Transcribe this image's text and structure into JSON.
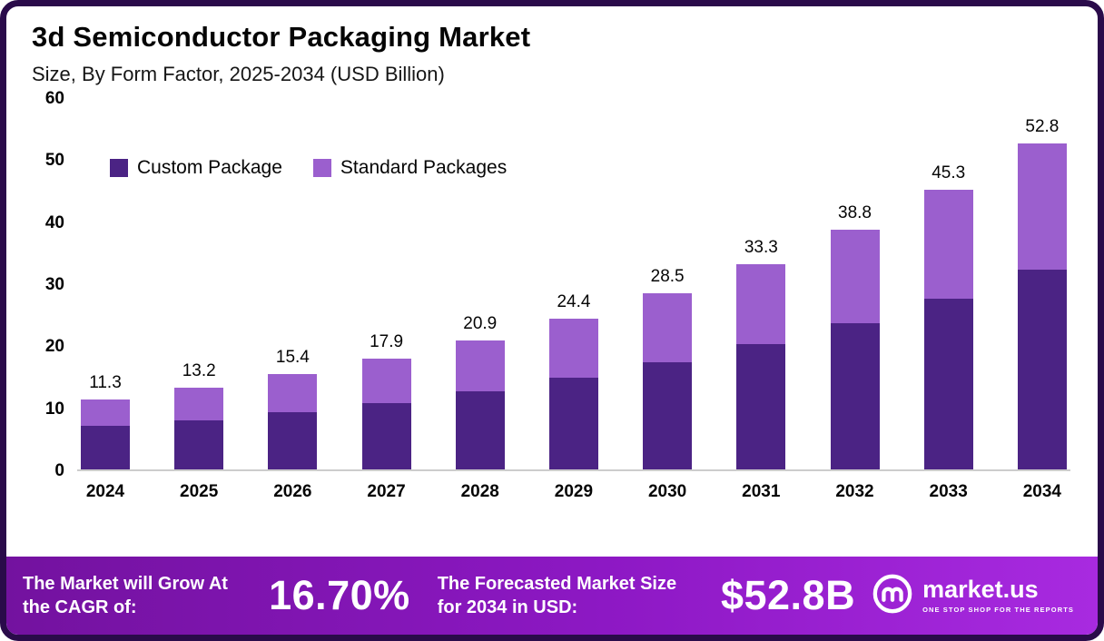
{
  "header": {
    "title": "3d Semiconductor Packaging Market",
    "subtitle": "Size, By Form Factor, 2025-2034 (USD Billion)"
  },
  "chart_data": {
    "type": "bar",
    "stacked": true,
    "title": "3d Semiconductor Packaging Market Size, By Form Factor, 2025-2034 (USD Billion)",
    "categories": [
      "2024",
      "2025",
      "2026",
      "2027",
      "2028",
      "2029",
      "2030",
      "2031",
      "2032",
      "2033",
      "2034"
    ],
    "series": [
      {
        "name": "Custom Package",
        "color": "#4b2384",
        "values": [
          7.0,
          8.0,
          9.3,
          10.8,
          12.7,
          14.8,
          17.4,
          20.3,
          23.7,
          27.7,
          32.3
        ]
      },
      {
        "name": "Standard Packages",
        "color": "#9b5fce",
        "values": [
          4.3,
          5.2,
          6.1,
          7.1,
          8.2,
          9.6,
          11.1,
          13.0,
          15.1,
          17.6,
          20.5
        ]
      }
    ],
    "totals": [
      11.3,
      13.2,
      15.4,
      17.9,
      20.9,
      24.4,
      28.5,
      33.3,
      38.8,
      45.3,
      52.8
    ],
    "xlabel": "",
    "ylabel": "",
    "ylim": [
      0,
      60
    ],
    "yticks": [
      0,
      10,
      20,
      30,
      40,
      50,
      60
    ],
    "grid": false,
    "legend_position": "inside-top-left"
  },
  "banner": {
    "cagr_label": "The Market will Grow At the CAGR of:",
    "cagr_value": "16.70%",
    "forecast_label": "The Forecasted Market Size for 2034 in USD:",
    "forecast_value": "$52.8B",
    "logo_text": "market.us",
    "logo_tagline": "ONE STOP SHOP FOR THE REPORTS"
  },
  "colors": {
    "frame_border": "#2a0b4a",
    "custom_package": "#4b2384",
    "standard_packages": "#9b5fce",
    "banner_gradient_start": "#73129f",
    "banner_gradient_end": "#a82ae0",
    "axis_line": "#cccccc"
  }
}
